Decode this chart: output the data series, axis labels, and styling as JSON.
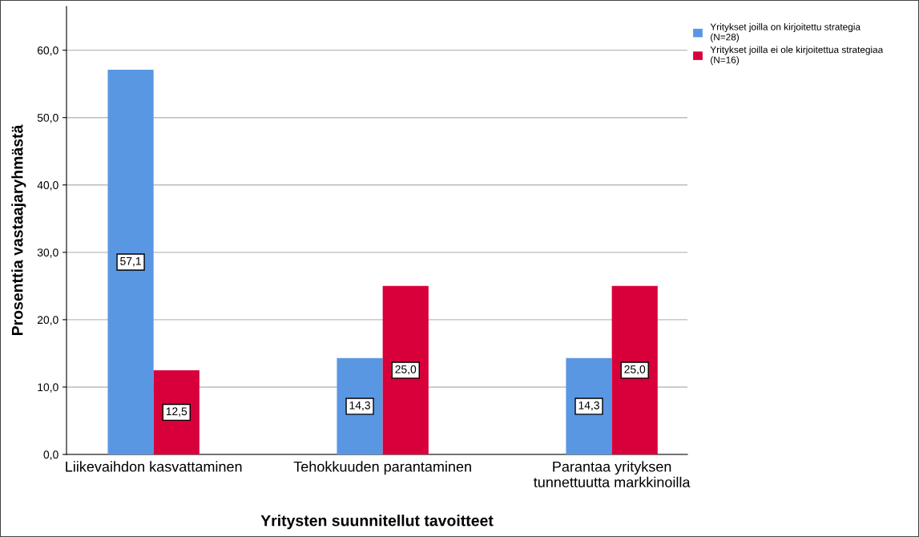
{
  "chart_data": {
    "type": "bar",
    "xlabel": "Yritysten suunnitellut tavoitteet",
    "ylabel": "Prosenttia vastaajaryhmästä",
    "categories": [
      "Liikevaihdon kasvattaminen",
      "Tehokkuuden parantaminen",
      "Parantaa yrityksen\ntunnettuutta markkinoilla"
    ],
    "series": [
      {
        "name": "Yritykset joilla on kirjoitettu strategia\n(N=28)",
        "color": "#5a97e3",
        "values": [
          57.1,
          14.3,
          14.3
        ],
        "value_labels": [
          "57,1",
          "14,3",
          "14,3"
        ]
      },
      {
        "name": "Yritykset joilla ei ole kirjoitettua strategiaa\n(N=16)",
        "color": "#d8003a",
        "values": [
          12.5,
          25.0,
          25.0
        ],
        "value_labels": [
          "12,5",
          "25,0",
          "25,0"
        ]
      }
    ],
    "ylim": [
      0,
      66.5
    ],
    "yticks": [
      {
        "value": 0,
        "label": "0,0"
      },
      {
        "value": 10,
        "label": "10,0"
      },
      {
        "value": 20,
        "label": "20,0"
      },
      {
        "value": 30,
        "label": "30,0"
      },
      {
        "value": 40,
        "label": "40,0"
      },
      {
        "value": 50,
        "label": "50,0"
      },
      {
        "value": 60,
        "label": "60,0"
      }
    ],
    "grid": "y",
    "legend": "top right"
  }
}
